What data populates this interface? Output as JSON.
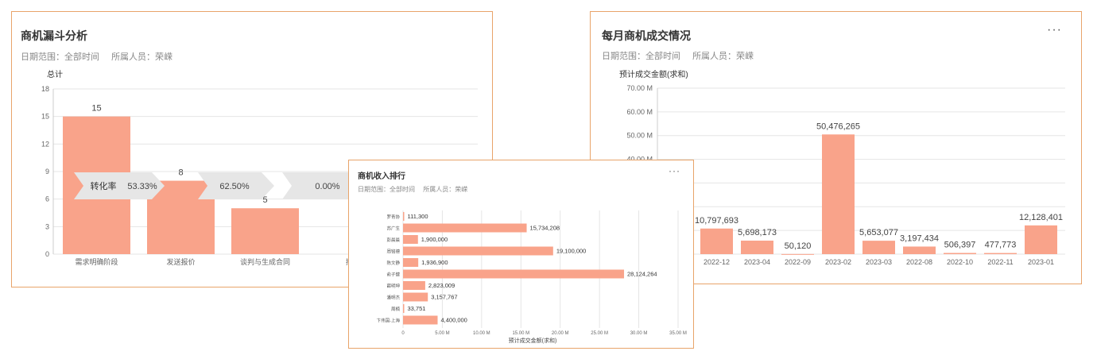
{
  "funnel_card": {
    "title": "商机漏斗分析",
    "filter_date": "日期范围：全部时间",
    "filter_owner": "所属人员：荣嵘"
  },
  "monthly_card": {
    "title": "每月商机成交情况",
    "filter_date": "日期范围：全部时间",
    "filter_owner": "所属人员：荣嵘",
    "more_label": "···"
  },
  "ranking_card": {
    "title": "商机收入排行",
    "filter_date": "日期范围：全部时间",
    "filter_owner": "所属人员：荣嵘",
    "more_label": "···"
  },
  "colors": {
    "bar": "#f9a38a",
    "arrow": "#e6e6e6",
    "card_border": "#e8a46a",
    "grid": "#e5e5e5"
  },
  "chart_data": [
    {
      "id": "funnel",
      "type": "bar",
      "ylabel": "总计",
      "ylim": [
        0,
        18
      ],
      "yticks": [
        0,
        3,
        6,
        9,
        12,
        15,
        18
      ],
      "categories": [
        "需求明确阶段",
        "发送报价",
        "谈判与生成合同",
        "挤"
      ],
      "values": [
        15,
        8,
        5,
        null
      ],
      "value_labels": [
        "15",
        "8",
        "5",
        ""
      ],
      "conversion_label": "转化率",
      "conversion_rates": [
        "53.33%",
        "62.50%",
        "0.00%"
      ],
      "grid": true
    },
    {
      "id": "monthly",
      "type": "bar",
      "ylabel": "预计成交金额(求和)",
      "ylim": [
        0,
        70000000
      ],
      "yticks": [
        0,
        10000000,
        20000000,
        30000000,
        40000000,
        50000000,
        60000000,
        70000000
      ],
      "ytick_labels": [
        "",
        "",
        "",
        "",
        "40.00 M",
        "50.00 M",
        "60.00 M",
        "70.00 M"
      ],
      "categories": [
        "",
        "2022-12",
        "2023-04",
        "2022-09",
        "2023-02",
        "2023-03",
        "2022-08",
        "2022-10",
        "2022-11",
        "2023-01"
      ],
      "values": [
        null,
        10797693,
        5698173,
        50120,
        50476265,
        5653077,
        3197434,
        506397,
        477773,
        12128401
      ],
      "value_labels": [
        "",
        "10,797,693",
        "5,698,173",
        "50,120",
        "50,476,265",
        "5,653,077",
        "3,197,434",
        "506,397",
        "477,773",
        "12,128,401"
      ],
      "grid": true
    },
    {
      "id": "ranking",
      "type": "bar",
      "orientation": "horizontal",
      "xlabel": "预计成交金额(求和)",
      "xlim": [
        0,
        35000000
      ],
      "xticks": [
        0,
        5000000,
        10000000,
        15000000,
        20000000,
        25000000,
        30000000,
        35000000
      ],
      "xtick_labels": [
        "0",
        "5.00 M",
        "10.00 M",
        "15.00 M",
        "20.00 M",
        "25.00 M",
        "30.00 M",
        "35.00 M"
      ],
      "categories": [
        "罗青协",
        "苏广生",
        "彭晨晨",
        "周铭德",
        "陈文静",
        "俞子健",
        "薛明坤",
        "潘明杰",
        "周楠",
        "卞伟国-上海"
      ],
      "values": [
        111300,
        15734208,
        1900000,
        19100000,
        1936900,
        28124264,
        2823009,
        3157767,
        33751,
        4400000
      ],
      "value_labels": [
        "111,300",
        "15,734,208",
        "1,900,000",
        "19,100,000",
        "1,936,900",
        "28,124,264",
        "2,823,009",
        "3,157,767",
        "33,751",
        "4,400,000"
      ],
      "grid": true
    }
  ]
}
